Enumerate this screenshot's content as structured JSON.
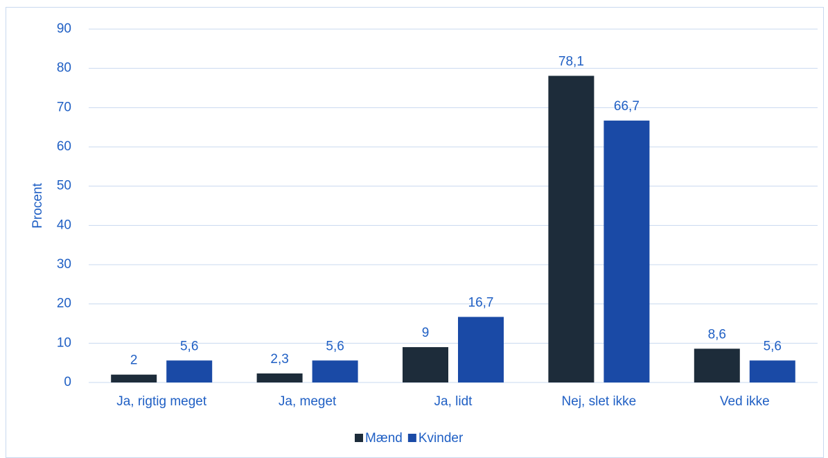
{
  "chart_data": {
    "type": "bar",
    "y_label": "Procent",
    "categories": [
      "Ja, rigtig meget",
      "Ja, meget",
      "Ja, lidt",
      "Nej, slet ikke",
      "Ved ikke"
    ],
    "series": [
      {
        "name": "Mænd",
        "color": "#1d2c3a",
        "values": [
          2,
          2.3,
          9,
          78.1,
          8.6
        ],
        "value_labels": [
          "2",
          "2,3",
          "9",
          "78,1",
          "8,6"
        ]
      },
      {
        "name": "Kvinder",
        "color": "#1a4aa6",
        "values": [
          5.6,
          5.6,
          16.7,
          66.7,
          5.6
        ],
        "value_labels": [
          "5,6",
          "5,6",
          "16,7",
          "66,7",
          "5,6"
        ]
      }
    ],
    "ylim": [
      0,
      90
    ],
    "yticks": [
      0,
      10,
      20,
      30,
      40,
      50,
      60,
      70,
      80,
      90
    ],
    "grid": true,
    "legend": "bottom"
  }
}
